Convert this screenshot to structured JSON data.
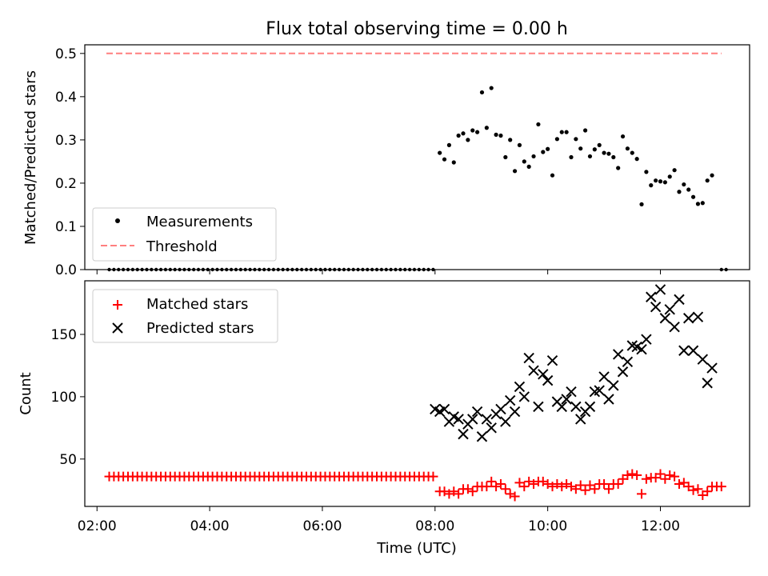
{
  "colors": {
    "threshold": "#ff7f7f",
    "matched": "#ff0000",
    "predicted": "#000000",
    "measurements": "#000000"
  },
  "chart_data": [
    {
      "type": "scatter",
      "title": "Flux total observing time = 0.00 h",
      "ylabel": "Matched/Predicted stars",
      "xlabel": "",
      "xlim": [
        "01:47",
        "13:35"
      ],
      "ylim": [
        0,
        0.52
      ],
      "y_ticks": [
        "0.0",
        "0.1",
        "0.2",
        "0.3",
        "0.4",
        "0.5"
      ],
      "legend": {
        "position": "lower-left",
        "entries": [
          "Measurements",
          "Threshold"
        ]
      },
      "threshold": {
        "name": "Threshold",
        "value": 0.5,
        "x": [
          "02:10",
          "13:05"
        ]
      },
      "zero_series": {
        "x_start": "02:13",
        "x_end": "08:00",
        "step_min": 5,
        "extra_x": [
          "13:05",
          "13:10"
        ]
      },
      "series": [
        {
          "name": "Measurements",
          "points": [
            [
              "08:05",
              0.27
            ],
            [
              "08:10",
              0.255
            ],
            [
              "08:15",
              0.288
            ],
            [
              "08:20",
              0.248
            ],
            [
              "08:25",
              0.31
            ],
            [
              "08:30",
              0.315
            ],
            [
              "08:35",
              0.3
            ],
            [
              "08:40",
              0.322
            ],
            [
              "08:45",
              0.318
            ],
            [
              "08:50",
              0.41
            ],
            [
              "08:55",
              0.328
            ],
            [
              "09:00",
              0.42
            ],
            [
              "09:05",
              0.312
            ],
            [
              "09:10",
              0.31
            ],
            [
              "09:15",
              0.26
            ],
            [
              "09:20",
              0.3
            ],
            [
              "09:25",
              0.228
            ],
            [
              "09:30",
              0.288
            ],
            [
              "09:35",
              0.25
            ],
            [
              "09:40",
              0.238
            ],
            [
              "09:45",
              0.262
            ],
            [
              "09:50",
              0.336
            ],
            [
              "09:55",
              0.272
            ],
            [
              "10:00",
              0.279
            ],
            [
              "10:05",
              0.218
            ],
            [
              "10:10",
              0.302
            ],
            [
              "10:15",
              0.318
            ],
            [
              "10:20",
              0.318
            ],
            [
              "10:25",
              0.26
            ],
            [
              "10:30",
              0.302
            ],
            [
              "10:35",
              0.28
            ],
            [
              "10:40",
              0.322
            ],
            [
              "10:45",
              0.262
            ],
            [
              "10:50",
              0.278
            ],
            [
              "10:55",
              0.288
            ],
            [
              "11:00",
              0.27
            ],
            [
              "11:05",
              0.268
            ],
            [
              "11:10",
              0.26
            ],
            [
              "11:15",
              0.235
            ],
            [
              "11:20",
              0.308
            ],
            [
              "11:25",
              0.28
            ],
            [
              "11:30",
              0.27
            ],
            [
              "11:35",
              0.256
            ],
            [
              "11:40",
              0.151
            ],
            [
              "11:45",
              0.226
            ],
            [
              "11:50",
              0.195
            ],
            [
              "11:55",
              0.206
            ],
            [
              "12:00",
              0.204
            ],
            [
              "12:05",
              0.202
            ],
            [
              "12:10",
              0.215
            ],
            [
              "12:15",
              0.23
            ],
            [
              "12:20",
              0.18
            ],
            [
              "12:25",
              0.197
            ],
            [
              "12:30",
              0.185
            ],
            [
              "12:35",
              0.168
            ],
            [
              "12:40",
              0.152
            ],
            [
              "12:45",
              0.154
            ],
            [
              "12:50",
              0.206
            ],
            [
              "12:55",
              0.218
            ]
          ]
        }
      ]
    },
    {
      "type": "scatter",
      "title": "",
      "ylabel": "Count",
      "xlabel": "Time (UTC)",
      "xlim": [
        "01:47",
        "13:35"
      ],
      "ylim": [
        12,
        193
      ],
      "y_ticks": [
        50,
        100,
        150
      ],
      "x_ticks": [
        "02:00",
        "04:00",
        "06:00",
        "08:00",
        "10:00",
        "12:00"
      ],
      "legend": {
        "position": "top-left",
        "entries": [
          "Matched stars",
          "Predicted stars"
        ]
      },
      "flat_series": {
        "name": "Matched stars",
        "x_start": "02:13",
        "x_end": "08:00",
        "step_min": 5,
        "value": 36
      },
      "series": [
        {
          "name": "Matched stars",
          "points": [
            [
              "08:05",
              24
            ],
            [
              "08:10",
              24
            ],
            [
              "08:15",
              22
            ],
            [
              "08:20",
              24
            ],
            [
              "08:25",
              22
            ],
            [
              "08:30",
              26
            ],
            [
              "08:35",
              26
            ],
            [
              "08:40",
              24
            ],
            [
              "08:45",
              28
            ],
            [
              "08:50",
              28
            ],
            [
              "08:55",
              28
            ],
            [
              "09:00",
              32
            ],
            [
              "09:05",
              28
            ],
            [
              "09:10",
              30
            ],
            [
              "09:15",
              26
            ],
            [
              "09:20",
              22
            ],
            [
              "09:25",
              20
            ],
            [
              "09:30",
              31
            ],
            [
              "09:35",
              28
            ],
            [
              "09:40",
              32
            ],
            [
              "09:45",
              30
            ],
            [
              "09:50",
              32
            ],
            [
              "09:55",
              32
            ],
            [
              "10:00",
              30
            ],
            [
              "10:05",
              28
            ],
            [
              "10:10",
              30
            ],
            [
              "10:15",
              28
            ],
            [
              "10:20",
              30
            ],
            [
              "10:25",
              28
            ],
            [
              "10:30",
              26
            ],
            [
              "10:35",
              29
            ],
            [
              "10:40",
              25
            ],
            [
              "10:45",
              29
            ],
            [
              "10:50",
              26
            ],
            [
              "10:55",
              30
            ],
            [
              "11:00",
              30
            ],
            [
              "11:05",
              26
            ],
            [
              "11:10",
              30
            ],
            [
              "11:15",
              30
            ],
            [
              "11:20",
              34
            ],
            [
              "11:25",
              37
            ],
            [
              "11:30",
              38
            ],
            [
              "11:35",
              37
            ],
            [
              "11:40",
              22
            ],
            [
              "11:45",
              34
            ],
            [
              "11:50",
              35
            ],
            [
              "11:55",
              35
            ],
            [
              "12:00",
              38
            ],
            [
              "12:05",
              34
            ],
            [
              "12:10",
              37
            ],
            [
              "12:15",
              36
            ],
            [
              "12:20",
              30
            ],
            [
              "12:25",
              31
            ],
            [
              "12:30",
              28
            ],
            [
              "12:35",
              25
            ],
            [
              "12:40",
              26
            ],
            [
              "12:45",
              21
            ],
            [
              "12:50",
              24
            ],
            [
              "12:55",
              28
            ],
            [
              "13:00",
              28
            ],
            [
              "13:05",
              28
            ]
          ]
        },
        {
          "name": "Predicted stars",
          "points": [
            [
              "08:00",
              90
            ],
            [
              "08:05",
              88
            ],
            [
              "08:10",
              90
            ],
            [
              "08:15",
              80
            ],
            [
              "08:20",
              84
            ],
            [
              "08:25",
              82
            ],
            [
              "08:30",
              70
            ],
            [
              "08:35",
              78
            ],
            [
              "08:40",
              82
            ],
            [
              "08:45",
              88
            ],
            [
              "08:50",
              68
            ],
            [
              "08:55",
              82
            ],
            [
              "09:00",
              75
            ],
            [
              "09:05",
              86
            ],
            [
              "09:10",
              90
            ],
            [
              "09:15",
              80
            ],
            [
              "09:20",
              97
            ],
            [
              "09:25",
              88
            ],
            [
              "09:30",
              108
            ],
            [
              "09:35",
              100
            ],
            [
              "09:40",
              131
            ],
            [
              "09:45",
              121
            ],
            [
              "09:50",
              92
            ],
            [
              "09:55",
              118
            ],
            [
              "10:00",
              113
            ],
            [
              "10:05",
              129
            ],
            [
              "10:10",
              96
            ],
            [
              "10:15",
              92
            ],
            [
              "10:20",
              98
            ],
            [
              "10:25",
              104
            ],
            [
              "10:30",
              92
            ],
            [
              "10:35",
              82
            ],
            [
              "10:40",
              88
            ],
            [
              "10:45",
              92
            ],
            [
              "10:50",
              104
            ],
            [
              "10:55",
              105
            ],
            [
              "11:00",
              116
            ],
            [
              "11:05",
              98
            ],
            [
              "11:10",
              109
            ],
            [
              "11:15",
              134
            ],
            [
              "11:20",
              120
            ],
            [
              "11:25",
              128
            ],
            [
              "11:30",
              141
            ],
            [
              "11:35",
              140
            ],
            [
              "11:40",
              138
            ],
            [
              "11:45",
              146
            ],
            [
              "11:50",
              180
            ],
            [
              "11:55",
              172
            ],
            [
              "12:00",
              186
            ],
            [
              "12:05",
              163
            ],
            [
              "12:10",
              170
            ],
            [
              "12:15",
              156
            ],
            [
              "12:20",
              178
            ],
            [
              "12:25",
              137
            ],
            [
              "12:30",
              163
            ],
            [
              "12:35",
              137
            ],
            [
              "12:40",
              164
            ],
            [
              "12:45",
              130
            ],
            [
              "12:50",
              111
            ],
            [
              "12:55",
              123
            ]
          ]
        }
      ]
    }
  ]
}
